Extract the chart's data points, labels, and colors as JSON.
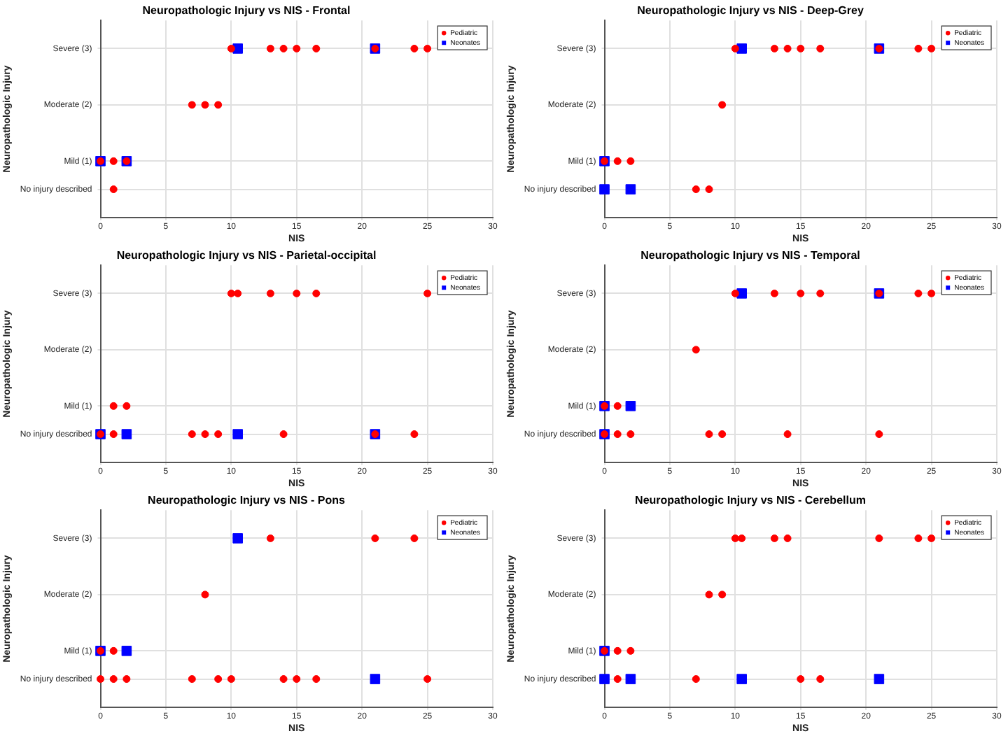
{
  "chart_data": [
    {
      "type": "scatter",
      "title": "Neuropathologic Injury vs NIS - Frontal",
      "xlabel": "NIS",
      "ylabel": "Neuropathologic Injury",
      "xlim": [
        0,
        30
      ],
      "xticks": [
        0,
        5,
        10,
        15,
        20,
        25,
        30
      ],
      "ylim": [
        0,
        3.5
      ],
      "yticks": [
        {
          "value": 0.5,
          "label": "No injury described"
        },
        {
          "value": 1,
          "label": "Mild (1)"
        },
        {
          "value": 2,
          "label": "Moderate (2)"
        },
        {
          "value": 3,
          "label": "Severe (3)"
        }
      ],
      "grid": true,
      "legend": "top right",
      "series": [
        {
          "name": "Neonates",
          "color": "#0000ff",
          "marker": "square",
          "x": [
            10.5,
            21,
            0,
            2
          ],
          "values": [
            3,
            3,
            1,
            1
          ]
        },
        {
          "name": "Pediatric",
          "color": "#ff0000",
          "marker": "circle",
          "x": [
            10,
            13,
            14,
            15,
            16.5,
            21,
            24,
            25,
            7,
            8,
            9,
            0,
            1,
            2,
            1
          ],
          "values": [
            3,
            3,
            3,
            3,
            3,
            3,
            3,
            3,
            2,
            2,
            2,
            1,
            1,
            1,
            0.5
          ]
        }
      ]
    },
    {
      "type": "scatter",
      "title": "Neuropathologic Injury vs NIS - Deep-Grey",
      "xlabel": "NIS",
      "ylabel": "Neuropathologic Injury",
      "xlim": [
        0,
        30
      ],
      "xticks": [
        0,
        5,
        10,
        15,
        20,
        25,
        30
      ],
      "ylim": [
        0,
        3.5
      ],
      "yticks": [
        {
          "value": 0.5,
          "label": "No injury described"
        },
        {
          "value": 1,
          "label": "Mild (1)"
        },
        {
          "value": 2,
          "label": "Moderate (2)"
        },
        {
          "value": 3,
          "label": "Severe (3)"
        }
      ],
      "grid": true,
      "legend": "top right",
      "series": [
        {
          "name": "Neonates",
          "color": "#0000ff",
          "marker": "square",
          "x": [
            10.5,
            21,
            0,
            0,
            2
          ],
          "values": [
            3,
            3,
            1,
            0.5,
            0.5
          ]
        },
        {
          "name": "Pediatric",
          "color": "#ff0000",
          "marker": "circle",
          "x": [
            10,
            13,
            14,
            15,
            16.5,
            21,
            24,
            25,
            9,
            0,
            1,
            2,
            7,
            8
          ],
          "values": [
            3,
            3,
            3,
            3,
            3,
            3,
            3,
            3,
            2,
            1,
            1,
            1,
            0.5,
            0.5
          ]
        }
      ]
    },
    {
      "type": "scatter",
      "title": "Neuropathologic Injury vs NIS - Parietal-occipital",
      "xlabel": "NIS",
      "ylabel": "Neuropathologic Injury",
      "xlim": [
        0,
        30
      ],
      "xticks": [
        0,
        5,
        10,
        15,
        20,
        25,
        30
      ],
      "ylim": [
        0,
        3.5
      ],
      "yticks": [
        {
          "value": 0.5,
          "label": "No injury described"
        },
        {
          "value": 1,
          "label": "Mild (1)"
        },
        {
          "value": 2,
          "label": "Moderate (2)"
        },
        {
          "value": 3,
          "label": "Severe (3)"
        }
      ],
      "grid": true,
      "legend": "top right",
      "series": [
        {
          "name": "Neonates",
          "color": "#0000ff",
          "marker": "square",
          "x": [
            0,
            2,
            10.5,
            21
          ],
          "values": [
            0.5,
            0.5,
            0.5,
            0.5
          ]
        },
        {
          "name": "Pediatric",
          "color": "#ff0000",
          "marker": "circle",
          "x": [
            10,
            10.5,
            13,
            15,
            16.5,
            25,
            1,
            2,
            0,
            1,
            7,
            8,
            9,
            14,
            21,
            24
          ],
          "values": [
            3,
            3,
            3,
            3,
            3,
            3,
            1,
            1,
            0.5,
            0.5,
            0.5,
            0.5,
            0.5,
            0.5,
            0.5,
            0.5
          ]
        }
      ]
    },
    {
      "type": "scatter",
      "title": "Neuropathologic Injury vs NIS - Temporal",
      "xlabel": "NIS",
      "ylabel": "Neuropathologic Injury",
      "xlim": [
        0,
        30
      ],
      "xticks": [
        0,
        5,
        10,
        15,
        20,
        25,
        30
      ],
      "ylim": [
        0,
        3.5
      ],
      "yticks": [
        {
          "value": 0.5,
          "label": "No injury described"
        },
        {
          "value": 1,
          "label": "Mild (1)"
        },
        {
          "value": 2,
          "label": "Moderate (2)"
        },
        {
          "value": 3,
          "label": "Severe (3)"
        }
      ],
      "grid": true,
      "legend": "top right",
      "series": [
        {
          "name": "Neonates",
          "color": "#0000ff",
          "marker": "square",
          "x": [
            10.5,
            21,
            0,
            2,
            0
          ],
          "values": [
            3,
            3,
            1,
            1,
            0.5
          ]
        },
        {
          "name": "Pediatric",
          "color": "#ff0000",
          "marker": "circle",
          "x": [
            10,
            13,
            15,
            16.5,
            21,
            24,
            25,
            7,
            0,
            1,
            0,
            1,
            2,
            8,
            9,
            14,
            21
          ],
          "values": [
            3,
            3,
            3,
            3,
            3,
            3,
            3,
            2,
            1,
            1,
            0.5,
            0.5,
            0.5,
            0.5,
            0.5,
            0.5,
            0.5
          ]
        }
      ]
    },
    {
      "type": "scatter",
      "title": "Neuropathologic Injury vs NIS - Pons",
      "xlabel": "NIS",
      "ylabel": "Neuropathologic Injury",
      "xlim": [
        0,
        30
      ],
      "xticks": [
        0,
        5,
        10,
        15,
        20,
        25,
        30
      ],
      "ylim": [
        0,
        3.5
      ],
      "yticks": [
        {
          "value": 0.5,
          "label": "No injury described"
        },
        {
          "value": 1,
          "label": "Mild (1)"
        },
        {
          "value": 2,
          "label": "Moderate (2)"
        },
        {
          "value": 3,
          "label": "Severe (3)"
        }
      ],
      "grid": true,
      "legend": "top right",
      "series": [
        {
          "name": "Neonates",
          "color": "#0000ff",
          "marker": "square",
          "x": [
            10.5,
            0,
            2,
            21
          ],
          "values": [
            3,
            1,
            1,
            0.5
          ]
        },
        {
          "name": "Pediatric",
          "color": "#ff0000",
          "marker": "circle",
          "x": [
            13,
            21,
            24,
            8,
            0,
            1,
            0,
            1,
            2,
            7,
            9,
            10,
            14,
            15,
            16.5,
            25
          ],
          "values": [
            3,
            3,
            3,
            2,
            1,
            1,
            0.5,
            0.5,
            0.5,
            0.5,
            0.5,
            0.5,
            0.5,
            0.5,
            0.5,
            0.5
          ]
        }
      ]
    },
    {
      "type": "scatter",
      "title": "Neuropathologic Injury vs NIS - Cerebellum",
      "xlabel": "NIS",
      "ylabel": "Neuropathologic Injury",
      "xlim": [
        0,
        30
      ],
      "xticks": [
        0,
        5,
        10,
        15,
        20,
        25,
        30
      ],
      "ylim": [
        0,
        3.5
      ],
      "yticks": [
        {
          "value": 0.5,
          "label": "No injury described"
        },
        {
          "value": 1,
          "label": "Mild (1)"
        },
        {
          "value": 2,
          "label": "Moderate (2)"
        },
        {
          "value": 3,
          "label": "Severe (3)"
        }
      ],
      "grid": true,
      "legend": "top right",
      "series": [
        {
          "name": "Neonates",
          "color": "#0000ff",
          "marker": "square",
          "x": [
            0,
            0,
            2,
            10.5,
            21
          ],
          "values": [
            1,
            0.5,
            0.5,
            0.5,
            0.5
          ]
        },
        {
          "name": "Pediatric",
          "color": "#ff0000",
          "marker": "circle",
          "x": [
            10,
            10.5,
            13,
            14,
            21,
            24,
            25,
            8,
            9,
            0,
            1,
            2,
            1,
            7,
            15,
            16.5
          ],
          "values": [
            3,
            3,
            3,
            3,
            3,
            3,
            3,
            2,
            2,
            1,
            1,
            1,
            0.5,
            0.5,
            0.5,
            0.5
          ]
        }
      ]
    }
  ]
}
